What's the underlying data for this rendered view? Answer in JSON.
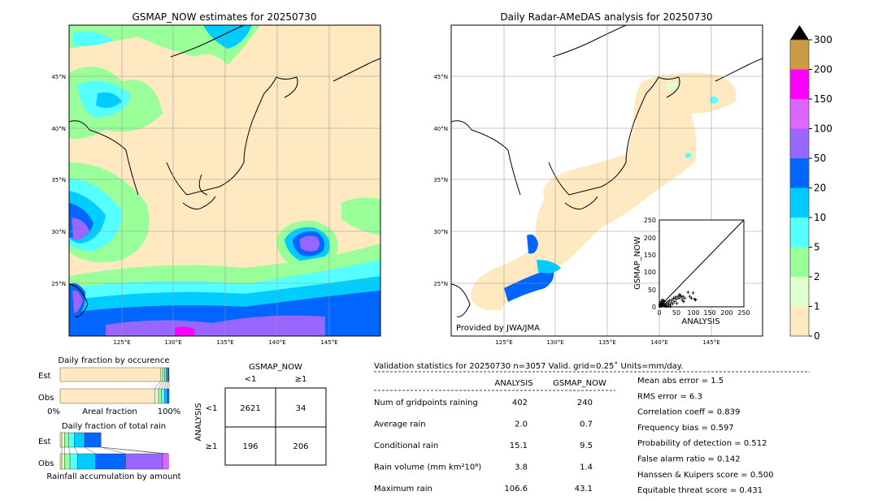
{
  "colors": {
    "c0_1": "#ffe9c0",
    "c1_2": "#e0ffd0",
    "c2_5": "#99ff99",
    "c5_10": "#55ffff",
    "c10_20": "#00ccff",
    "c20_50": "#0066ff",
    "c50_100": "#9966ff",
    "c100_150": "#dd66ff",
    "c150_200": "#ff00ff",
    "c200_300": "#cc9944",
    "over": "#000000"
  },
  "chart_data": [
    {
      "type": "heatmap",
      "name": "left-map",
      "title": "GSMAP_NOW estimates for 20250730",
      "lat_ticks": [
        "45°N",
        "40°N",
        "35°N",
        "30°N",
        "25°N"
      ],
      "lon_ticks": [
        "125°E",
        "130°E",
        "135°E",
        "140°E",
        "145°E"
      ]
    },
    {
      "type": "heatmap",
      "name": "right-map",
      "title": "Daily Radar-AMeDAS analysis for 20250730",
      "lat_ticks": [
        "45°N",
        "40°N",
        "35°N",
        "30°N",
        "25°N"
      ],
      "lon_ticks": [
        "125°E",
        "130°E",
        "135°E",
        "140°E",
        "145°E"
      ],
      "credit": "Provided by JWA/JMA"
    },
    {
      "type": "scatter",
      "name": "inset-scatter",
      "xlabel": "ANALYSIS",
      "ylabel": "GSMAP_NOW",
      "xlim": [
        0,
        250
      ],
      "ylim": [
        0,
        250
      ],
      "ticks": [
        "0",
        "50",
        "100",
        "150",
        "200",
        "250"
      ],
      "points": [
        [
          2,
          1
        ],
        [
          4,
          3
        ],
        [
          5,
          8
        ],
        [
          6,
          2
        ],
        [
          8,
          5
        ],
        [
          10,
          12
        ],
        [
          12,
          4
        ],
        [
          14,
          9
        ],
        [
          15,
          15
        ],
        [
          18,
          6
        ],
        [
          20,
          10
        ],
        [
          22,
          3
        ],
        [
          25,
          14
        ],
        [
          28,
          8
        ],
        [
          30,
          18
        ],
        [
          32,
          5
        ],
        [
          35,
          12
        ],
        [
          38,
          20
        ],
        [
          40,
          9
        ],
        [
          42,
          25
        ],
        [
          45,
          15
        ],
        [
          48,
          28
        ],
        [
          50,
          22
        ],
        [
          52,
          10
        ],
        [
          55,
          30
        ],
        [
          58,
          25
        ],
        [
          60,
          35
        ],
        [
          62,
          33
        ],
        [
          65,
          28
        ],
        [
          68,
          20
        ],
        [
          70,
          30
        ],
        [
          72,
          15
        ],
        [
          75,
          25
        ],
        [
          85,
          42
        ],
        [
          90,
          30
        ],
        [
          95,
          25
        ],
        [
          100,
          40
        ],
        [
          105,
          22
        ],
        [
          107,
          20
        ],
        [
          3,
          10
        ],
        [
          6,
          15
        ],
        [
          9,
          20
        ],
        [
          11,
          7
        ],
        [
          16,
          2
        ],
        [
          20,
          1
        ],
        [
          26,
          2
        ],
        [
          33,
          1
        ],
        [
          1,
          5
        ],
        [
          7,
          11
        ],
        [
          13,
          18
        ]
      ]
    },
    {
      "type": "bar",
      "name": "colorbar",
      "ticks": [
        "0",
        "1",
        "2",
        "5",
        "10",
        "20",
        "50",
        "100",
        "150",
        "200",
        "300"
      ]
    },
    {
      "type": "bar",
      "name": "occurrence-fraction",
      "title": "Daily fraction by occurence",
      "xlabel": "Areal fraction",
      "xticks": [
        "0%",
        "100%"
      ],
      "categories": [
        "Est",
        "Obs"
      ],
      "bins": [
        "0-1",
        "1-2",
        "2-5",
        "5-10",
        "10-20",
        "20-50"
      ],
      "series": [
        {
          "name": "Est",
          "values": [
            92.0,
            2.0,
            1.8,
            1.6,
            1.4,
            1.2
          ]
        },
        {
          "name": "Obs",
          "values": [
            86.8,
            3.5,
            2.8,
            2.6,
            2.3,
            2.0
          ]
        }
      ]
    },
    {
      "type": "bar",
      "name": "total-rain-fraction",
      "title": "Daily fraction of total rain",
      "xlabel": "Rainfall accumulation by amount",
      "categories": [
        "Est",
        "Obs"
      ],
      "bins": [
        "0-1",
        "1-2",
        "2-5",
        "5-10",
        "10-20",
        "20-50",
        "50-100",
        "100-150"
      ],
      "series": [
        {
          "name": "Est",
          "values": [
            1.5,
            2.5,
            4,
            5,
            9.5,
            15,
            0,
            0
          ]
        },
        {
          "name": "Obs",
          "values": [
            1.5,
            2.5,
            5,
            7,
            16.5,
            27.5,
            34,
            5.5
          ]
        }
      ]
    },
    {
      "type": "table",
      "name": "contingency-table",
      "col_title": "GSMAP_NOW",
      "row_title": "ANALYSIS",
      "col_labels": [
        "<1",
        "≥1"
      ],
      "row_labels": [
        "<1",
        "≥1"
      ],
      "cells": [
        [
          "2621",
          "34"
        ],
        [
          "196",
          "206"
        ]
      ]
    }
  ],
  "stats": {
    "header": "Validation statistics for 20250730  n=3057 Valid. grid=0.25˚ Units=mm/day.",
    "col_analysis": "ANALYSIS",
    "col_gsmap": "GSMAP_NOW",
    "rows": [
      {
        "label": "Num of gridpoints raining",
        "analysis": "402",
        "gsmap": "240"
      },
      {
        "label": "Average rain",
        "analysis": "2.0",
        "gsmap": "0.7"
      },
      {
        "label": "Conditional rain",
        "analysis": "15.1",
        "gsmap": "9.5"
      },
      {
        "label": "Rain volume (mm km²10⁶)",
        "analysis": "3.8",
        "gsmap": "1.4"
      },
      {
        "label": "Maximum rain",
        "analysis": "106.6",
        "gsmap": "43.1"
      }
    ],
    "scores": [
      "Mean abs error =    1.5",
      "RMS error =    6.3",
      "Correlation coeff =  0.839",
      "Frequency bias =  0.597",
      "Probability of detection =  0.512",
      "False alarm ratio =  0.142",
      "Hanssen & Kuipers score =  0.500",
      "Equitable threat score =  0.431"
    ]
  }
}
